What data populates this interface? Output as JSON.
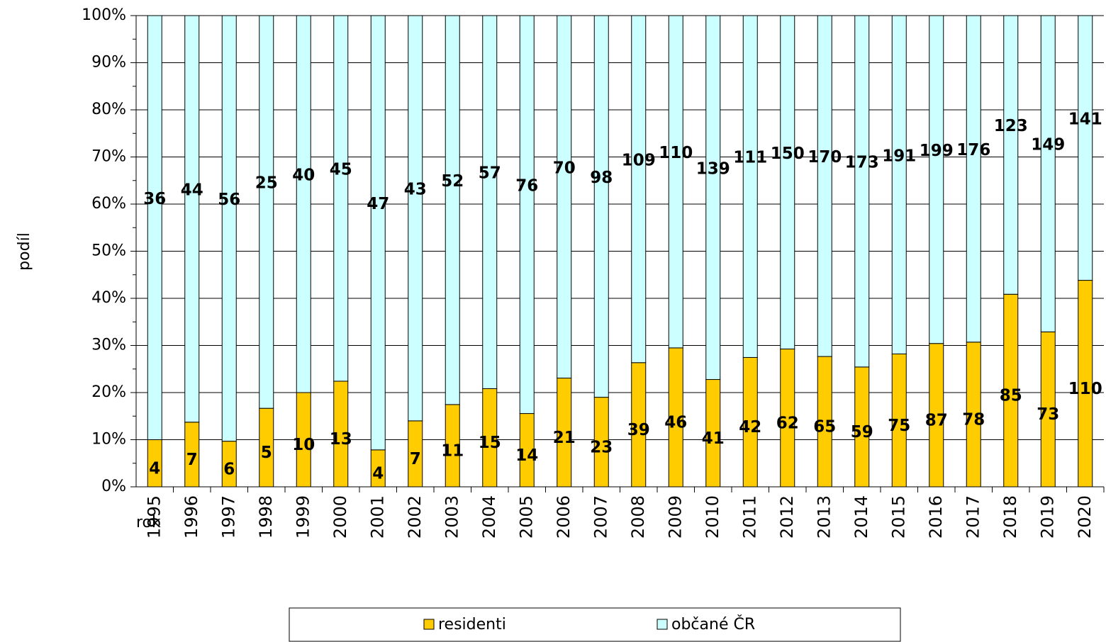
{
  "chart_data": {
    "type": "bar",
    "stacking": "percent",
    "x_label": "rok",
    "y_label": "podíl",
    "categories": [
      "1995",
      "1996",
      "1997",
      "1998",
      "1999",
      "2000",
      "2001",
      "2002",
      "2003",
      "2004",
      "2005",
      "2006",
      "2007",
      "2008",
      "2009",
      "2010",
      "2011",
      "2012",
      "2013",
      "2014",
      "2015",
      "2016",
      "2017",
      "2018",
      "2019",
      "2020"
    ],
    "series": [
      {
        "name": "residenti",
        "color": "#ffcc00",
        "values": [
          4,
          7,
          6,
          5,
          10,
          13,
          4,
          7,
          11,
          15,
          14,
          21,
          23,
          39,
          46,
          41,
          42,
          62,
          65,
          59,
          75,
          87,
          78,
          85,
          73,
          110
        ]
      },
      {
        "name": "občané ČR",
        "color": "#ccffff",
        "values": [
          36,
          44,
          56,
          25,
          40,
          45,
          47,
          43,
          52,
          57,
          76,
          70,
          98,
          109,
          110,
          139,
          111,
          150,
          170,
          173,
          191,
          199,
          176,
          123,
          149,
          141
        ]
      }
    ],
    "ylim": [
      0,
      100
    ],
    "yticks": [
      {
        "value": 0,
        "label": "0%"
      },
      {
        "value": 10,
        "label": "10%"
      },
      {
        "value": 20,
        "label": "20%"
      },
      {
        "value": 30,
        "label": "30%"
      },
      {
        "value": 40,
        "label": "40%"
      },
      {
        "value": 50,
        "label": "50%"
      },
      {
        "value": 60,
        "label": "60%"
      },
      {
        "value": 70,
        "label": "70%"
      },
      {
        "value": 80,
        "label": "80%"
      },
      {
        "value": 90,
        "label": "90%"
      },
      {
        "value": 100,
        "label": "100%"
      }
    ],
    "grid": true,
    "legend": "bottom"
  }
}
